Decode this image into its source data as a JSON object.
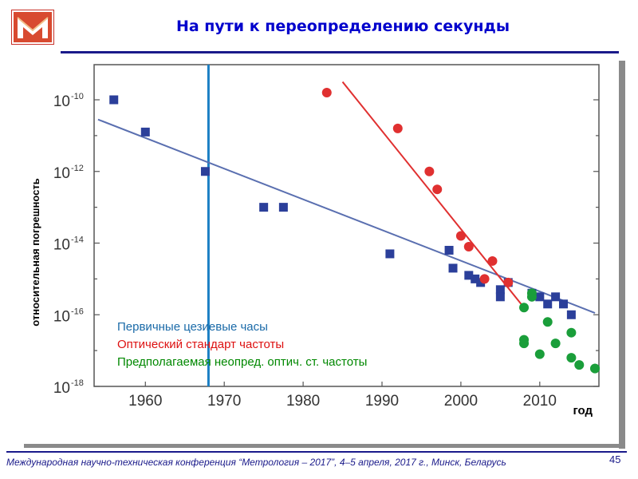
{
  "slide": {
    "title": "На пути к переопределению секунды",
    "footer": "Международная научно-техническая конференция “Метрология – 2017”, 4–5 апреля, 2017 г., Минск, Беларусь",
    "page_number": "45",
    "logo_icon": "university-logo-icon",
    "colors": {
      "title": "#0000cc",
      "rule": "#1a1a8a"
    }
  },
  "chart_data": {
    "type": "scatter",
    "xlabel": "год",
    "ylabel": "относительная погрешность",
    "x_ticks": [
      1960,
      1970,
      1980,
      1990,
      2000,
      2010
    ],
    "y_ticks": [
      {
        "exp": -10,
        "base": "10",
        "sup": "-10"
      },
      {
        "exp": -12,
        "base": "10",
        "sup": "-12"
      },
      {
        "exp": -14,
        "base": "10",
        "sup": "-14"
      },
      {
        "exp": -16,
        "base": "10",
        "sup": "-16"
      },
      {
        "exp": -18,
        "base": "10",
        "sup": "-18"
      }
    ],
    "xlim": [
      1953.5,
      2017.5
    ],
    "ylim_log10": [
      -18,
      -9
    ],
    "yscale": "log",
    "grid": false,
    "vline": {
      "x": 1968,
      "color": "#1b7fc4"
    },
    "legend_placement": "bottom-left",
    "series": [
      {
        "name": "Первичные цезиевые часы",
        "color": "#2b3f9a",
        "marker": "square",
        "points": [
          [
            1956,
            -10
          ],
          [
            1960,
            -10.9
          ],
          [
            1967.6,
            -12
          ],
          [
            1975,
            -13
          ],
          [
            1977.5,
            -13
          ],
          [
            1991,
            -14.3
          ],
          [
            1998.5,
            -14.2
          ],
          [
            1999,
            -14.7
          ],
          [
            2001,
            -14.9
          ],
          [
            2001.8,
            -15
          ],
          [
            2002.5,
            -15.1
          ],
          [
            2005,
            -15.3
          ],
          [
            2005,
            -15.5
          ],
          [
            2006,
            -15.1
          ],
          [
            2009,
            -15.4
          ],
          [
            2010,
            -15.5
          ],
          [
            2011,
            -15.7
          ],
          [
            2012,
            -15.5
          ],
          [
            2013,
            -15.7
          ],
          [
            2014,
            -16
          ]
        ],
        "trend": [
          [
            1954,
            -10.55
          ],
          [
            2017,
            -15.95
          ]
        ],
        "trend_color": "#5a6fb0"
      },
      {
        "name": "Оптический стандарт частоты",
        "color": "#e03030",
        "marker": "circle",
        "points": [
          [
            1983,
            -9.8
          ],
          [
            1992,
            -10.8
          ],
          [
            1996,
            -12
          ],
          [
            1997,
            -12.5
          ],
          [
            2000,
            -13.8
          ],
          [
            2001,
            -14.1
          ],
          [
            2003,
            -15
          ],
          [
            2004,
            -14.5
          ],
          [
            2006,
            -15.1
          ]
        ],
        "trend": [
          [
            1985,
            -9.5
          ],
          [
            2008,
            -15.8
          ]
        ],
        "trend_color": "#e03030"
      },
      {
        "name": "Предполагаемая неопред. оптич. ст. частоты",
        "color": "#1a9e3a",
        "marker": "circle",
        "points": [
          [
            2008,
            -15.8
          ],
          [
            2008,
            -16.7
          ],
          [
            2008,
            -16.8
          ],
          [
            2009,
            -15.4
          ],
          [
            2009,
            -15.5
          ],
          [
            2010,
            -17.1
          ],
          [
            2011,
            -16.2
          ],
          [
            2012,
            -16.8
          ],
          [
            2014,
            -16.5
          ],
          [
            2014,
            -17.2
          ],
          [
            2015,
            -17.4
          ],
          [
            2017,
            -17.5
          ],
          [
            2017,
            -17.5
          ]
        ]
      }
    ]
  }
}
